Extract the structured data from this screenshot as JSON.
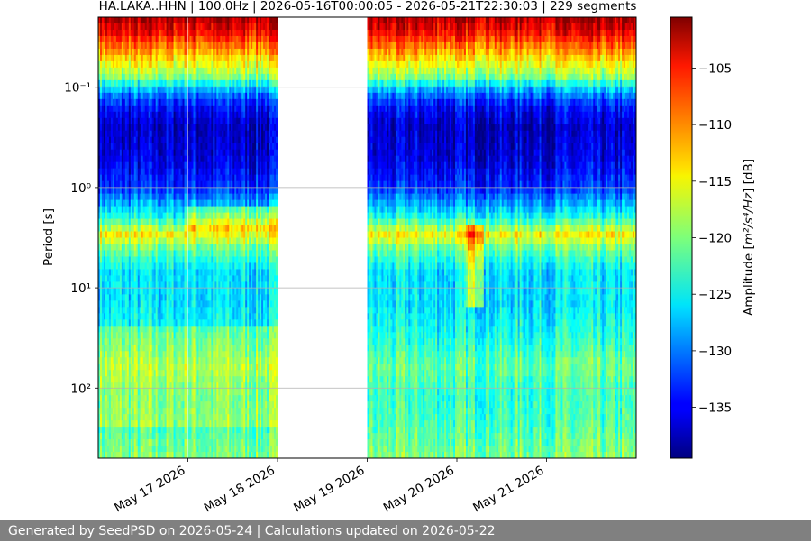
{
  "chart_data": {
    "type": "heatmap",
    "title": "HA.LAKA..HHN | 100.0Hz | 2026-05-16T00:00:05 - 2026-05-21T22:30:03 | 229 segments",
    "ylabel": "Period [s]",
    "colorbar_label_prefix": "Amplitude [",
    "colorbar_label_units": "m²/s⁴/Hz",
    "colorbar_label_suffix": "] [dB]",
    "xlim": [
      "2026-05-16T00:00:00",
      "2026-05-21T23:59:59"
    ],
    "x_ticks": [
      {
        "date": "2026-05-17T00:00:00",
        "label": "May 17 2026"
      },
      {
        "date": "2026-05-18T00:00:00",
        "label": "May 18 2026"
      },
      {
        "date": "2026-05-19T00:00:00",
        "label": "May 19 2026"
      },
      {
        "date": "2026-05-20T00:00:00",
        "label": "May 20 2026"
      },
      {
        "date": "2026-05-21T00:00:00",
        "label": "May 21 2026"
      }
    ],
    "y_scale": "log",
    "y_inverted": true,
    "ylim": [
      0.02,
      500
    ],
    "y_ticks": [
      {
        "exp": "-1",
        "label": "10⁻¹"
      },
      {
        "exp": "0",
        "label": "10⁰"
      },
      {
        "exp": "1",
        "label": "10¹"
      },
      {
        "exp": "2",
        "label": "10²"
      }
    ],
    "grid": "horizontal lines at major y ticks",
    "colormap": "jet",
    "color_range": [
      -139.5,
      -100.5
    ],
    "colorbar_ticks": [
      -105,
      -110,
      -115,
      -120,
      -125,
      -130,
      -135
    ],
    "data_gaps": [
      [
        "2026-05-16T23:45:00",
        "2026-05-16T23:57:00"
      ],
      [
        "2026-05-18T00:00:00",
        "2026-05-19T00:00:00"
      ],
      [
        "2026-05-19T23:56:00",
        "2026-05-20T00:06:00"
      ],
      [
        "2026-05-20T18:45:00",
        "2026-05-20T18:55:00"
      ],
      [
        "2026-05-20T23:47:00",
        "2026-05-20T23:58:00"
      ]
    ],
    "spectral_profile": {
      "period_s": [
        0.02,
        0.03,
        0.045,
        0.06,
        0.08,
        0.1,
        0.15,
        0.25,
        0.5,
        1,
        2,
        3,
        4,
        7,
        15,
        30,
        60,
        120,
        250,
        500
      ],
      "amplitude_db": [
        -102,
        -106,
        -112,
        -116,
        -120,
        -127,
        -134,
        -137,
        -136,
        -133,
        -124,
        -115,
        -121,
        -126,
        -126,
        -124,
        -121,
        -123,
        -122,
        -120
      ]
    }
  },
  "footer": {
    "text": "Generated by SeedPSD on 2026-05-24 | Calculations updated on 2026-05-22"
  }
}
